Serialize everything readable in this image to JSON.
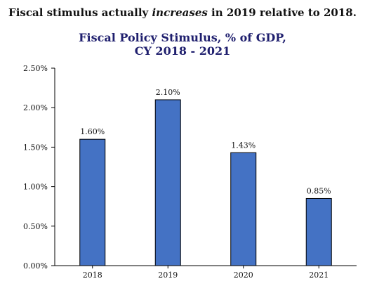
{
  "headline": {
    "before": "Fiscal stimulus actually ",
    "emphasis": "increases",
    "after": " in 2019 relative to 2018."
  },
  "chart_data": {
    "type": "bar",
    "title": "Fiscal Policy Stimulus, % of GDP,",
    "subtitle": "CY 2018 - 2021",
    "xlabel": "",
    "ylabel": "",
    "categories": [
      "2018",
      "2019",
      "2020",
      "2021"
    ],
    "values": [
      1.6,
      2.1,
      1.43,
      0.85
    ],
    "data_labels": [
      "1.60%",
      "2.10%",
      "1.43%",
      "0.85%"
    ],
    "ylim": [
      0,
      2.5
    ],
    "y_ticks": [
      0,
      0.5,
      1.0,
      1.5,
      2.0,
      2.5
    ],
    "y_tick_labels": [
      "0.00%",
      "0.50%",
      "1.00%",
      "1.50%",
      "2.00%",
      "2.50%"
    ],
    "grid": false,
    "legend": "none",
    "bar_color": "#4472c4",
    "bar_edge_color": "#000000"
  }
}
